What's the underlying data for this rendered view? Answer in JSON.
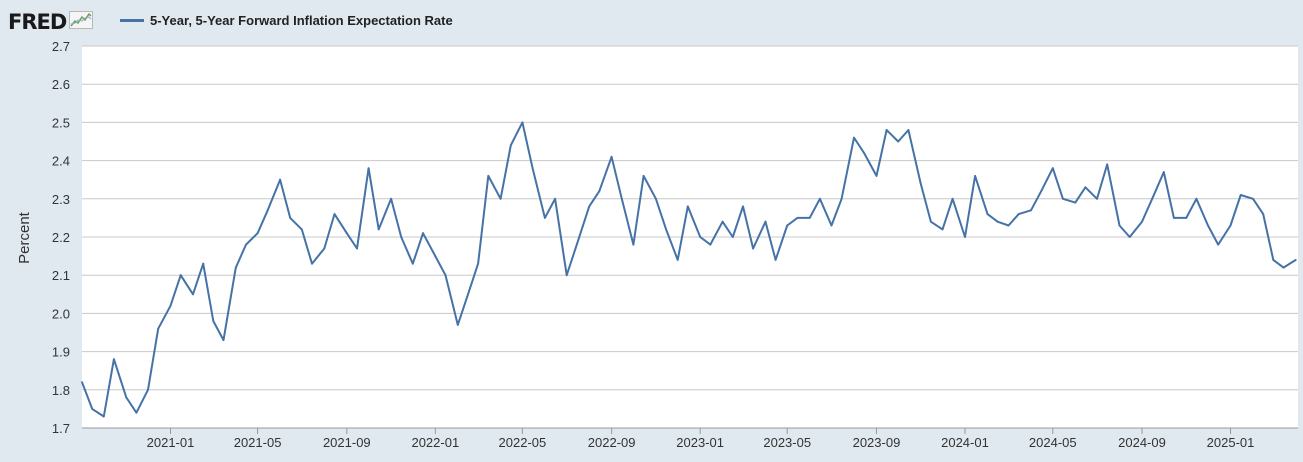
{
  "header": {
    "logo_text": "FRED",
    "logo_icon": "line-graph-icon"
  },
  "colors": {
    "series": "#4572a7",
    "background": "#e1e9f0",
    "plot": "#ffffff",
    "grid": "#c8c8c8"
  },
  "chart_data": {
    "type": "line",
    "title": "",
    "ylabel": "Percent",
    "xlabel": "",
    "ylim": [
      1.7,
      2.7
    ],
    "yticks": [
      "1.7",
      "1.8",
      "1.9",
      "2.0",
      "2.1",
      "2.2",
      "2.3",
      "2.4",
      "2.5",
      "2.6",
      "2.7"
    ],
    "xlim": [
      "2020-09-01",
      "2025-04-04"
    ],
    "xticks": [
      "2021-01",
      "2021-05",
      "2021-09",
      "2022-01",
      "2022-05",
      "2022-09",
      "2023-01",
      "2023-05",
      "2023-09",
      "2024-01",
      "2024-05",
      "2024-09",
      "2025-01"
    ],
    "grid": true,
    "legend": "top-left",
    "series": [
      {
        "name": "5-Year, 5-Year Forward Inflation Expectation Rate",
        "x": [
          "2020-09-01",
          "2020-09-15",
          "2020-10-01",
          "2020-10-15",
          "2020-11-01",
          "2020-11-15",
          "2020-12-01",
          "2020-12-15",
          "2021-01-01",
          "2021-01-15",
          "2021-02-01",
          "2021-02-15",
          "2021-03-01",
          "2021-03-15",
          "2021-04-01",
          "2021-04-15",
          "2021-05-01",
          "2021-05-15",
          "2021-06-01",
          "2021-06-15",
          "2021-07-01",
          "2021-07-15",
          "2021-08-01",
          "2021-08-15",
          "2021-09-01",
          "2021-09-15",
          "2021-10-01",
          "2021-10-15",
          "2021-11-01",
          "2021-11-15",
          "2021-12-01",
          "2021-12-15",
          "2022-01-01",
          "2022-01-15",
          "2022-02-01",
          "2022-02-15",
          "2022-03-01",
          "2022-03-15",
          "2022-04-01",
          "2022-04-15",
          "2022-05-01",
          "2022-05-15",
          "2022-06-01",
          "2022-06-15",
          "2022-07-01",
          "2022-07-15",
          "2022-08-01",
          "2022-08-15",
          "2022-09-01",
          "2022-09-15",
          "2022-10-01",
          "2022-10-15",
          "2022-11-01",
          "2022-11-15",
          "2022-12-01",
          "2022-12-15",
          "2023-01-01",
          "2023-01-15",
          "2023-02-01",
          "2023-02-15",
          "2023-03-01",
          "2023-03-15",
          "2023-04-01",
          "2023-04-15",
          "2023-05-01",
          "2023-05-15",
          "2023-06-01",
          "2023-06-15",
          "2023-07-01",
          "2023-07-15",
          "2023-08-01",
          "2023-08-15",
          "2023-09-01",
          "2023-09-15",
          "2023-10-01",
          "2023-10-15",
          "2023-11-01",
          "2023-11-15",
          "2023-12-01",
          "2023-12-15",
          "2024-01-01",
          "2024-01-15",
          "2024-02-01",
          "2024-02-15",
          "2024-03-01",
          "2024-03-15",
          "2024-04-01",
          "2024-04-15",
          "2024-05-01",
          "2024-05-15",
          "2024-06-01",
          "2024-06-15",
          "2024-07-01",
          "2024-07-15",
          "2024-08-01",
          "2024-08-15",
          "2024-09-01",
          "2024-09-15",
          "2024-10-01",
          "2024-10-15",
          "2024-11-01",
          "2024-11-15",
          "2024-12-01",
          "2024-12-15",
          "2025-01-01",
          "2025-01-15",
          "2025-02-01",
          "2025-02-15",
          "2025-03-01",
          "2025-03-15",
          "2025-04-01"
        ],
        "values": [
          1.82,
          1.75,
          1.73,
          1.88,
          1.78,
          1.74,
          1.8,
          1.96,
          2.02,
          2.1,
          2.05,
          2.13,
          1.98,
          1.93,
          2.12,
          2.18,
          2.21,
          2.27,
          2.35,
          2.25,
          2.22,
          2.13,
          2.17,
          2.26,
          2.21,
          2.17,
          2.38,
          2.22,
          2.3,
          2.2,
          2.13,
          2.21,
          2.15,
          2.1,
          1.97,
          2.05,
          2.13,
          2.36,
          2.3,
          2.44,
          2.5,
          2.38,
          2.25,
          2.3,
          2.1,
          2.18,
          2.28,
          2.32,
          2.41,
          2.3,
          2.18,
          2.36,
          2.3,
          2.22,
          2.14,
          2.28,
          2.2,
          2.18,
          2.24,
          2.2,
          2.28,
          2.17,
          2.24,
          2.14,
          2.23,
          2.25,
          2.25,
          2.3,
          2.23,
          2.3,
          2.46,
          2.42,
          2.36,
          2.48,
          2.45,
          2.48,
          2.34,
          2.24,
          2.22,
          2.3,
          2.2,
          2.36,
          2.26,
          2.24,
          2.23,
          2.26,
          2.27,
          2.32,
          2.38,
          2.3,
          2.29,
          2.33,
          2.3,
          2.39,
          2.23,
          2.2,
          2.24,
          2.3,
          2.37,
          2.25,
          2.25,
          2.3,
          2.23,
          2.18,
          2.23,
          2.31,
          2.3,
          2.26,
          2.14,
          2.12,
          2.14
        ]
      }
    ]
  }
}
